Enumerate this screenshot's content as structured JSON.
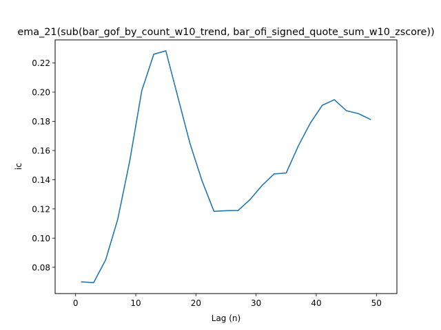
{
  "chart_data": {
    "type": "line",
    "title": "ema_21(sub(bar_gof_by_count_w10_trend, bar_ofi_signed_quote_sum_w10_zscore))",
    "xlabel": "Lag (n)",
    "ylabel": "ic",
    "xlim": [
      -3.4,
      53.4
    ],
    "ylim": [
      0.062,
      0.2358
    ],
    "xticks": [
      0,
      10,
      20,
      30,
      40,
      50
    ],
    "xtick_labels": [
      "0",
      "10",
      "20",
      "30",
      "40",
      "50"
    ],
    "yticks": [
      0.08,
      0.1,
      0.12,
      0.14,
      0.16,
      0.18,
      0.2,
      0.22
    ],
    "ytick_labels": [
      "0.08",
      "0.10",
      "0.12",
      "0.14",
      "0.16",
      "0.18",
      "0.20",
      "0.22"
    ],
    "grid": false,
    "series": [
      {
        "color": "#1f77b4",
        "x": [
          1,
          3,
          5,
          7,
          9,
          11,
          13,
          15,
          17,
          19,
          21,
          23,
          25,
          27,
          29,
          31,
          33,
          35,
          37,
          39,
          41,
          43,
          45,
          47,
          49
        ],
        "y": [
          0.07,
          0.0695,
          0.0851,
          0.1128,
          0.1528,
          0.201,
          0.226,
          0.2283,
          0.1966,
          0.165,
          0.1394,
          0.1183,
          0.1188,
          0.1189,
          0.1264,
          0.1361,
          0.144,
          0.1446,
          0.163,
          0.1787,
          0.191,
          0.1948,
          0.1873,
          0.1853,
          0.1813
        ]
      }
    ]
  }
}
